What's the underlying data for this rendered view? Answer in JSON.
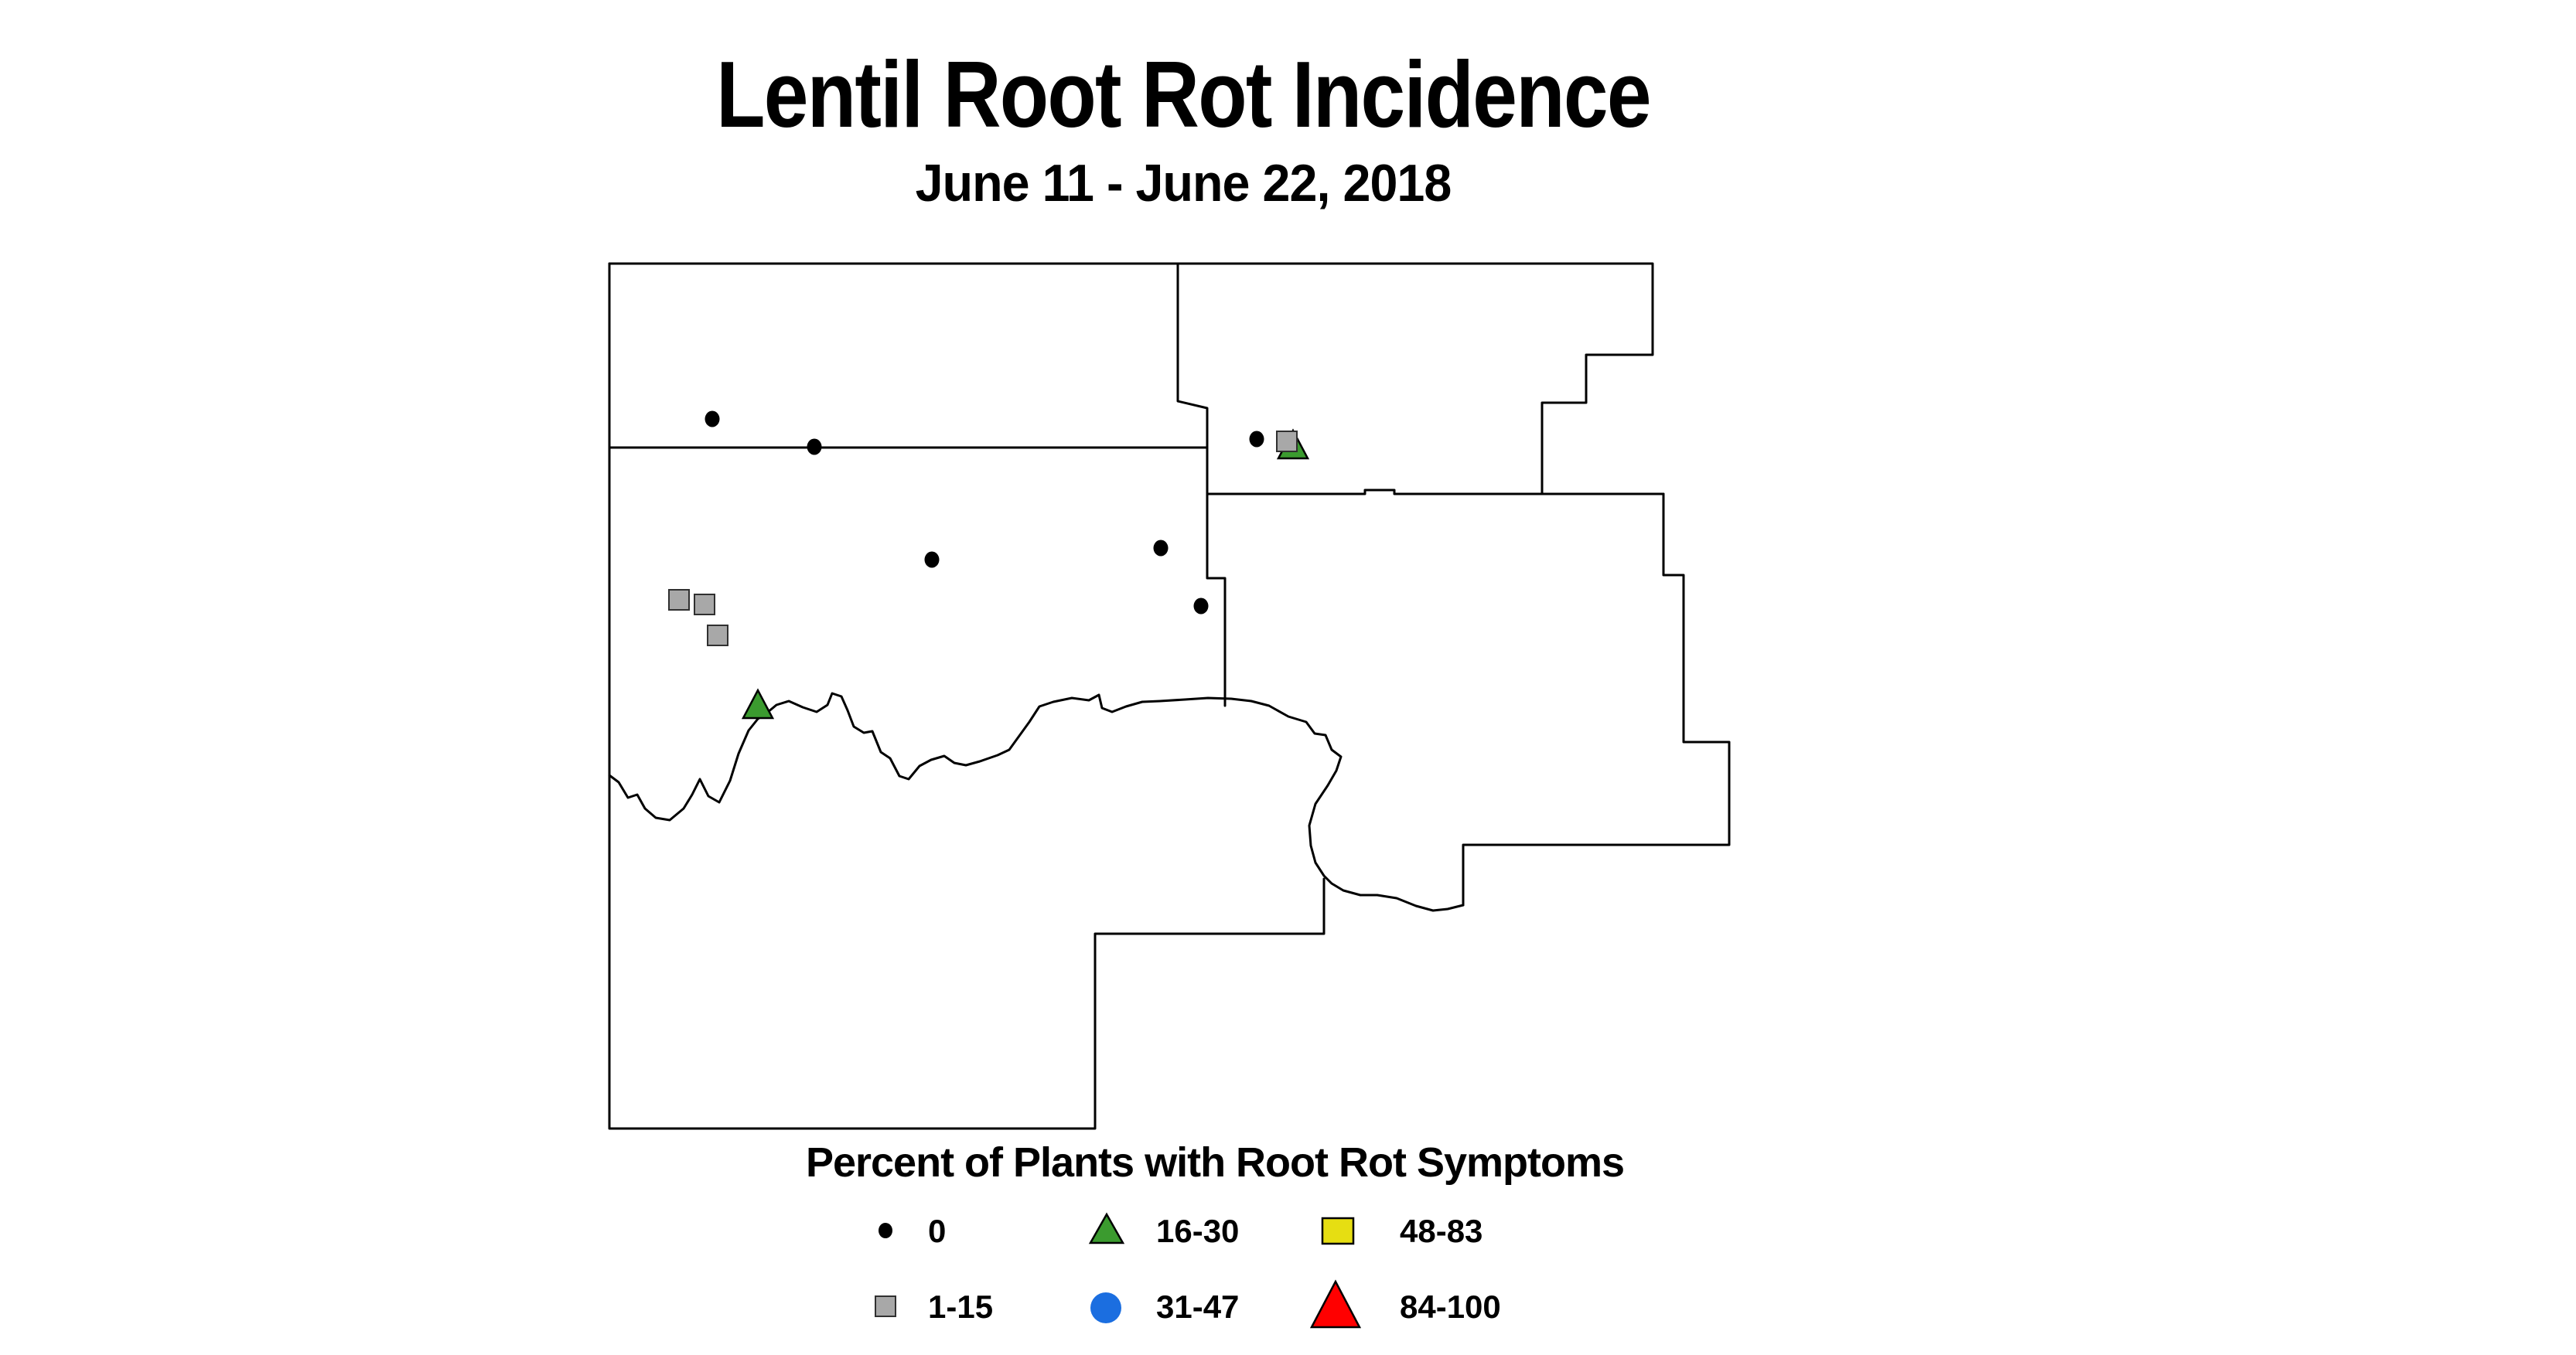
{
  "header": {
    "title": "Lentil Root Rot Incidence",
    "subtitle": "June 11 - June 22, 2018"
  },
  "legend": {
    "title": "Percent of Plants with Root Rot Symptoms",
    "items": [
      {
        "label": "0",
        "symbol": "black-dot",
        "color": "#000000"
      },
      {
        "label": "1-15",
        "symbol": "gray-square",
        "color": "#A8A8A8"
      },
      {
        "label": "16-30",
        "symbol": "green-triangle",
        "color": "#3B9B2F"
      },
      {
        "label": "31-47",
        "symbol": "blue-circle",
        "color": "#1B6EE0"
      },
      {
        "label": "48-83",
        "symbol": "yellow-square",
        "color": "#E6DE12"
      },
      {
        "label": "84-100",
        "symbol": "red-triangle",
        "color": "#FF0000"
      }
    ]
  },
  "chart_data": {
    "type": "scatter",
    "subtype": "symbol-map of county survey sites",
    "title": "Lentil Root Rot Incidence",
    "subtitle": "June 11 - June 22, 2018",
    "legend_title": "Percent of Plants with Root Rot Symptoms",
    "legend_position": "bottom",
    "grid": false,
    "axes": "none (geographic county map with black outlines on white)",
    "categories": [
      "0",
      "1-15",
      "16-30",
      "31-47",
      "48-83",
      "84-100"
    ],
    "symbol_styles": {
      "black-dot": {
        "shape": "ellipse",
        "rx": 9.5,
        "ry": 10.5,
        "fill": "#000000"
      },
      "green-triangle": {
        "shape": "triangle",
        "half_width": 19,
        "ascent": 20,
        "descent": 16,
        "fill": "#3B9B2F",
        "stroke": "#000000",
        "stroke_width": 2.5
      },
      "gray-square": {
        "shape": "rect",
        "size": 26,
        "fill": "#A8A8A8",
        "stroke": "#303030",
        "stroke_width": 2
      },
      "blue-circle": {
        "shape": "ellipse",
        "rx": 20,
        "ry": 20,
        "fill": "#1B6EE0"
      },
      "yellow-square": {
        "shape": "rect",
        "size": 34,
        "fill": "#E6DE12",
        "stroke": "#000000",
        "stroke_width": 2.5
      },
      "red-triangle": {
        "shape": "triangle",
        "half_width": 31,
        "ascent": 34,
        "descent": 25,
        "fill": "#FF0000",
        "stroke": "#000000",
        "stroke_width": 2.5
      }
    },
    "series": [
      {
        "name": "0",
        "symbol": "black-dot",
        "points": [
          [
            921,
            542
          ],
          [
            1053,
            578
          ],
          [
            1205,
            724
          ],
          [
            1501,
            709
          ],
          [
            1553,
            784
          ],
          [
            1625,
            568
          ]
        ]
      },
      {
        "name": "16-30",
        "symbol": "green-triangle",
        "points": [
          [
            1672,
            577
          ],
          [
            980,
            913
          ]
        ]
      },
      {
        "name": "1-15",
        "symbol": "gray-square",
        "points": [
          [
            878,
            776
          ],
          [
            911,
            782
          ],
          [
            928,
            822
          ],
          [
            1664,
            571
          ]
        ]
      },
      {
        "name": "31-47",
        "symbol": "blue-circle",
        "points": []
      },
      {
        "name": "48-83",
        "symbol": "yellow-square",
        "points": []
      },
      {
        "name": "84-100",
        "symbol": "red-triangle",
        "points": []
      }
    ],
    "notes": "Six survey counties outlined in black; a meandering river forms the south boundary of the upper counties. Site symbols: six black dots (0%), four gray squares (1-15%), two green triangles (16-30%). No blue, yellow or red sites shown."
  }
}
